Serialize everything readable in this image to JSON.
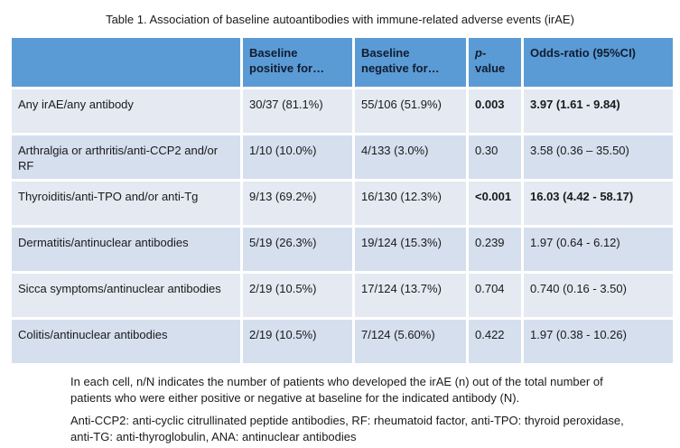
{
  "title": "Table 1. Association of baseline autoantibodies with immune-related adverse events (irAE)",
  "colors": {
    "header_bg": "#5b9bd5",
    "row_light_bg": "#e4e9f2",
    "row_dark_bg": "#d5dfee",
    "separator": "#ffffff",
    "header_text": "#101c30",
    "body_text": "#1a1a1a"
  },
  "table": {
    "columns": [
      "",
      "Baseline\npositive for…",
      "Baseline\nnegative for…",
      "p-value",
      "Odds-ratio (95%CI)"
    ],
    "rows": [
      {
        "label": "Any irAE/any antibody",
        "baseline_positive": "30/37 (81.1%)",
        "baseline_negative": "55/106 (51.9%)",
        "p_value": "0.003",
        "odds_ratio": "3.97 (1.61 - 9.84)",
        "significant": true
      },
      {
        "label": "Arthralgia or arthritis/anti-CCP2 and/or RF",
        "baseline_positive": "1/10 (10.0%)",
        "baseline_negative": "4/133 (3.0%)",
        "p_value": "0.30",
        "odds_ratio": "3.58 (0.36 – 35.50)",
        "significant": false
      },
      {
        "label": "Thyroiditis/anti-TPO and/or anti-Tg",
        "baseline_positive": "9/13 (69.2%)",
        "baseline_negative": "16/130 (12.3%)",
        "p_value": "<0.001",
        "odds_ratio": "16.03 (4.42 - 58.17)",
        "significant": true
      },
      {
        "label": "Dermatitis/antinuclear antibodies",
        "baseline_positive": "5/19 (26.3%)",
        "baseline_negative": "19/124 (15.3%)",
        "p_value": "0.239",
        "odds_ratio": "1.97 (0.64 - 6.12)",
        "significant": false
      },
      {
        "label": "Sicca symptoms/antinuclear antibodies",
        "baseline_positive": "2/19 (10.5%)",
        "baseline_negative": "17/124 (13.7%)",
        "p_value": "0.704",
        "odds_ratio": "0.740 (0.16 - 3.50)",
        "significant": false
      },
      {
        "label": "Colitis/antinuclear antibodies",
        "baseline_positive": "2/19 (10.5%)",
        "baseline_negative": "7/124 (5.60%)",
        "p_value": "0.422",
        "odds_ratio": "1.97 (0.38 - 10.26)",
        "significant": false
      }
    ]
  },
  "footnotes": [
    "In each cell, n/N indicates the number of patients who developed the irAE (n) out of the total number of patients who were either positive or negative at baseline for the indicated antibody (N).",
    "Anti-CCP2: anti-cyclic citrullinated peptide antibodies, RF: rheumatoid factor, anti-TPO: thyroid peroxidase, anti-TG: anti-thyroglobulin, ANA: antinuclear antibodies"
  ]
}
